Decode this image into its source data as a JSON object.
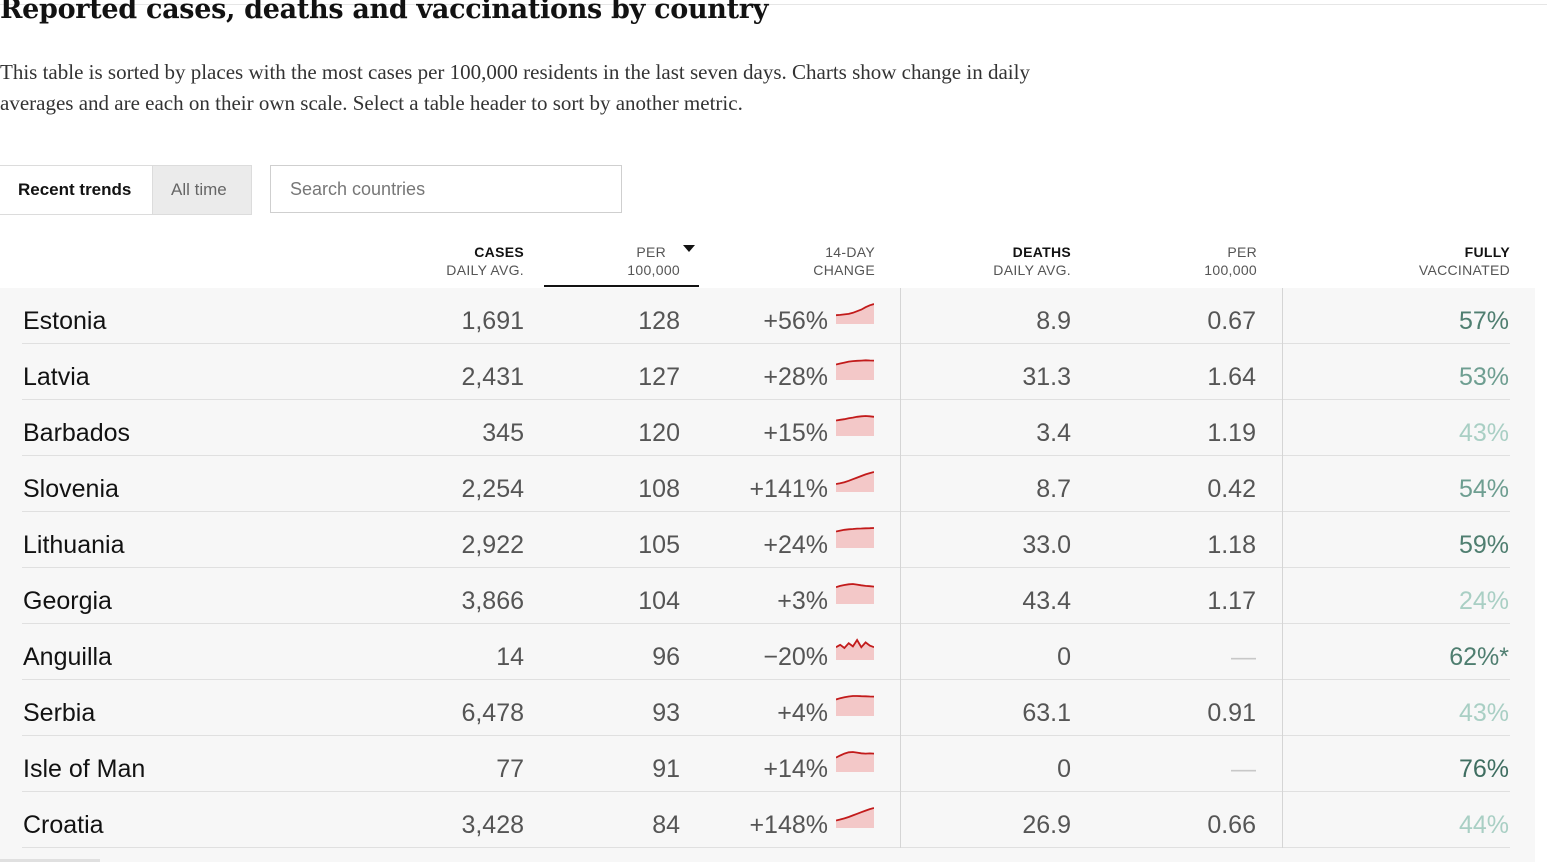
{
  "title": "Reported cases, deaths and vaccinations by country",
  "description": "This table is sorted by places with the most cases per 100,000 residents in the last seven days. Charts show change in daily averages and are each on their own scale. Select a table header to sort by another metric.",
  "tabs": {
    "recent": "Recent trends",
    "all_time": "All time"
  },
  "search": {
    "placeholder": "Search countries",
    "value": ""
  },
  "headers": {
    "cases": [
      "CASES",
      "DAILY AVG."
    ],
    "per": [
      "PER",
      "100,000"
    ],
    "change": [
      "14-DAY",
      "CHANGE"
    ],
    "deaths": [
      "DEATHS",
      "DAILY AVG."
    ],
    "dper": [
      "PER",
      "100,000"
    ],
    "vax": [
      "FULLY",
      "VACCINATED"
    ]
  },
  "colors": {
    "spark_line": "#c21b1b",
    "spark_fill": "#f3c8c8",
    "vax_levels": [
      "#a9cfc4",
      "#6e9e91",
      "#4f7e70",
      "#3f6e61"
    ]
  },
  "rows": [
    {
      "country": "Estonia",
      "cases": "1,691",
      "per": "128",
      "change": "+56%",
      "deaths": "8.9",
      "dper": "0.67",
      "vax": "57%",
      "vax_level": 2,
      "spark": [
        0.3,
        0.32,
        0.35,
        0.38,
        0.45,
        0.55,
        0.65,
        0.8,
        0.92,
        1.0
      ]
    },
    {
      "country": "Latvia",
      "cases": "2,431",
      "per": "127",
      "change": "+28%",
      "deaths": "31.3",
      "dper": "1.64",
      "vax": "53%",
      "vax_level": 1,
      "spark": [
        0.72,
        0.78,
        0.84,
        0.9,
        0.93,
        0.95,
        0.96,
        0.98,
        0.97,
        0.96
      ]
    },
    {
      "country": "Barbados",
      "cases": "345",
      "per": "120",
      "change": "+15%",
      "deaths": "3.4",
      "dper": "1.19",
      "vax": "43%",
      "vax_level": 0,
      "spark": [
        0.72,
        0.76,
        0.8,
        0.86,
        0.9,
        0.95,
        0.98,
        1.0,
        0.98,
        0.95
      ]
    },
    {
      "country": "Slovenia",
      "cases": "2,254",
      "per": "108",
      "change": "+141%",
      "deaths": "8.7",
      "dper": "0.42",
      "vax": "54%",
      "vax_level": 1,
      "spark": [
        0.25,
        0.3,
        0.36,
        0.45,
        0.55,
        0.65,
        0.75,
        0.85,
        0.93,
        1.0
      ]
    },
    {
      "country": "Lithuania",
      "cases": "2,922",
      "per": "105",
      "change": "+24%",
      "deaths": "33.0",
      "dper": "1.18",
      "vax": "59%",
      "vax_level": 2,
      "spark": [
        0.78,
        0.84,
        0.89,
        0.92,
        0.94,
        0.96,
        0.97,
        0.98,
        0.99,
        1.0
      ]
    },
    {
      "country": "Georgia",
      "cases": "3,866",
      "per": "104",
      "change": "+3%",
      "deaths": "43.4",
      "dper": "1.17",
      "vax": "24%",
      "vax_level": 0,
      "spark": [
        0.8,
        0.88,
        0.94,
        0.98,
        1.0,
        0.96,
        0.92,
        0.88,
        0.86,
        0.84
      ]
    },
    {
      "country": "Anguilla",
      "cases": "14",
      "per": "96",
      "change": "−20%",
      "deaths": "0",
      "dper": "—",
      "vax": "62%*",
      "vax_level": 2,
      "spark": [
        0.55,
        0.7,
        0.5,
        0.8,
        0.6,
        1.0,
        0.55,
        0.85,
        0.65,
        0.55
      ]
    },
    {
      "country": "Serbia",
      "cases": "6,478",
      "per": "93",
      "change": "+4%",
      "deaths": "63.1",
      "dper": "0.91",
      "vax": "43%",
      "vax_level": 0,
      "spark": [
        0.78,
        0.86,
        0.92,
        0.97,
        1.0,
        1.0,
        0.99,
        0.98,
        0.97,
        0.96
      ]
    },
    {
      "country": "Isle of Man",
      "cases": "77",
      "per": "91",
      "change": "+14%",
      "deaths": "0",
      "dper": "—",
      "vax": "76%",
      "vax_level": 3,
      "spark": [
        0.65,
        0.78,
        0.9,
        0.98,
        1.0,
        0.96,
        0.92,
        0.9,
        0.91,
        0.9
      ]
    },
    {
      "country": "Croatia",
      "cases": "3,428",
      "per": "84",
      "change": "+148%",
      "deaths": "26.9",
      "dper": "0.66",
      "vax": "44%",
      "vax_level": 0,
      "spark": [
        0.22,
        0.28,
        0.35,
        0.44,
        0.54,
        0.64,
        0.74,
        0.84,
        0.93,
        1.0
      ]
    }
  ]
}
